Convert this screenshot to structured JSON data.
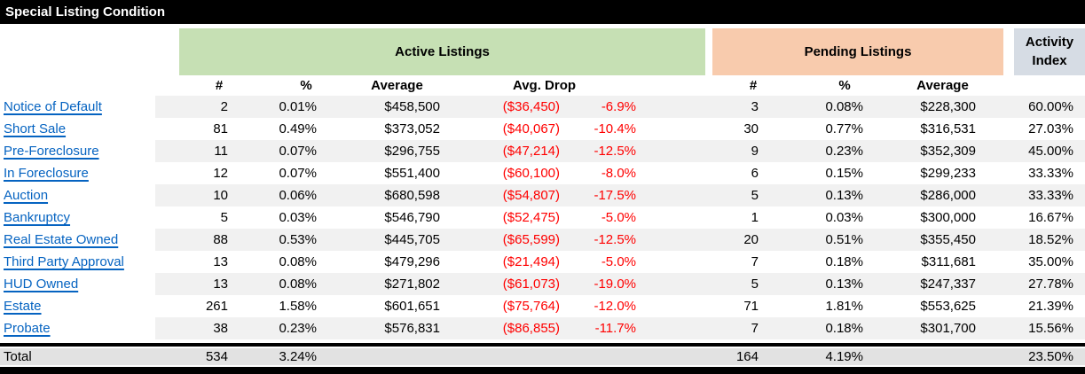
{
  "title": "Special Listing Condition",
  "groups": {
    "active": {
      "label": "Active Listings"
    },
    "pending": {
      "label": "Pending Listings"
    },
    "activity": {
      "label": "Activity Index"
    }
  },
  "columns": {
    "active": [
      "#",
      "%",
      "Average",
      "Avg. Drop"
    ],
    "pending": [
      "#",
      "%",
      "Average"
    ]
  },
  "rows": [
    {
      "label": "Notice of Default",
      "a_num": "2",
      "a_pct": "0.01%",
      "a_avg": "$458,500",
      "drop_amt": "($36,450)",
      "drop_pct": "-6.9%",
      "p_num": "3",
      "p_pct": "0.08%",
      "p_avg": "$228,300",
      "activity": "60.00%"
    },
    {
      "label": "Short Sale",
      "a_num": "81",
      "a_pct": "0.49%",
      "a_avg": "$373,052",
      "drop_amt": "($40,067)",
      "drop_pct": "-10.4%",
      "p_num": "30",
      "p_pct": "0.77%",
      "p_avg": "$316,531",
      "activity": "27.03%"
    },
    {
      "label": "Pre-Foreclosure",
      "a_num": "11",
      "a_pct": "0.07%",
      "a_avg": "$296,755",
      "drop_amt": "($47,214)",
      "drop_pct": "-12.5%",
      "p_num": "9",
      "p_pct": "0.23%",
      "p_avg": "$352,309",
      "activity": "45.00%"
    },
    {
      "label": "In Foreclosure",
      "a_num": "12",
      "a_pct": "0.07%",
      "a_avg": "$551,400",
      "drop_amt": "($60,100)",
      "drop_pct": "-8.0%",
      "p_num": "6",
      "p_pct": "0.15%",
      "p_avg": "$299,233",
      "activity": "33.33%"
    },
    {
      "label": "Auction",
      "a_num": "10",
      "a_pct": "0.06%",
      "a_avg": "$680,598",
      "drop_amt": "($54,807)",
      "drop_pct": "-17.5%",
      "p_num": "5",
      "p_pct": "0.13%",
      "p_avg": "$286,000",
      "activity": "33.33%"
    },
    {
      "label": "Bankruptcy",
      "a_num": "5",
      "a_pct": "0.03%",
      "a_avg": "$546,790",
      "drop_amt": "($52,475)",
      "drop_pct": "-5.0%",
      "p_num": "1",
      "p_pct": "0.03%",
      "p_avg": "$300,000",
      "activity": "16.67%"
    },
    {
      "label": "Real Estate Owned",
      "a_num": "88",
      "a_pct": "0.53%",
      "a_avg": "$445,705",
      "drop_amt": "($65,599)",
      "drop_pct": "-12.5%",
      "p_num": "20",
      "p_pct": "0.51%",
      "p_avg": "$355,450",
      "activity": "18.52%"
    },
    {
      "label": "Third Party Approval",
      "a_num": "13",
      "a_pct": "0.08%",
      "a_avg": "$479,296",
      "drop_amt": "($21,494)",
      "drop_pct": "-5.0%",
      "p_num": "7",
      "p_pct": "0.18%",
      "p_avg": "$311,681",
      "activity": "35.00%"
    },
    {
      "label": "HUD Owned",
      "a_num": "13",
      "a_pct": "0.08%",
      "a_avg": "$271,802",
      "drop_amt": "($61,073)",
      "drop_pct": "-19.0%",
      "p_num": "5",
      "p_pct": "0.13%",
      "p_avg": "$247,337",
      "activity": "27.78%"
    },
    {
      "label": "Estate",
      "a_num": "261",
      "a_pct": "1.58%",
      "a_avg": "$601,651",
      "drop_amt": "($75,764)",
      "drop_pct": "-12.0%",
      "p_num": "71",
      "p_pct": "1.81%",
      "p_avg": "$553,625",
      "activity": "21.39%"
    },
    {
      "label": "Probate",
      "a_num": "38",
      "a_pct": "0.23%",
      "a_avg": "$576,831",
      "drop_amt": "($86,855)",
      "drop_pct": "-11.7%",
      "p_num": "7",
      "p_pct": "0.18%",
      "p_avg": "$301,700",
      "activity": "15.56%"
    }
  ],
  "total": {
    "label": "Total",
    "a_num": "534",
    "a_pct": "3.24%",
    "p_num": "164",
    "p_pct": "4.19%",
    "activity": "23.50%"
  },
  "colors": {
    "title_bg": "#000000",
    "title_fg": "#FFFFFF",
    "active_header_green": "#C6E0B4",
    "pending_header_orange": "#F8CBAD",
    "activity_header_bluegray": "#D6DCE4",
    "row_stripe": "#F1F1F1",
    "total_row_bg": "#E2E2E2",
    "link_blue": "#0563C1",
    "negative_red": "#FF0000"
  }
}
